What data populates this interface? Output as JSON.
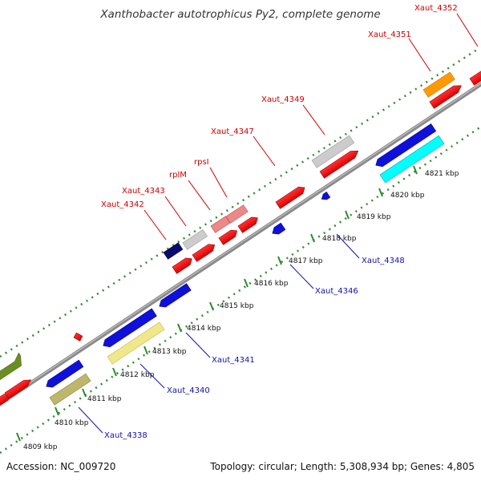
{
  "title": "Xanthobacter autotrophicus Py2, complete genome",
  "footer": {
    "accession": "Accession: NC_009720",
    "stats": "Topology: circular; Length: 5,308,934 bp; Genes: 4,805"
  },
  "kbp_ticks": [
    "4809 kbp",
    "4810 kbp",
    "4811 kbp",
    "4812 kbp",
    "4813 kbp",
    "4814 kbp",
    "4815 kbp",
    "4816 kbp",
    "4817 kbp",
    "4818 kbp",
    "4819 kbp",
    "4820 kbp",
    "4821 kbp"
  ],
  "top_labels": [
    "Xaut_4342",
    "Xaut_4343",
    "rplM",
    "rpsI",
    "Xaut_4347",
    "Xaut_4349",
    "Xaut_4351",
    "Xaut_4352"
  ],
  "bottom_labels": [
    "Xaut_4338",
    "Xaut_4340",
    "Xaut_4341",
    "Xaut_4346",
    "Xaut_4348"
  ],
  "colors": {
    "forward_label": "#cc0000",
    "reverse_label": "#1111aa",
    "backbone": "#8a8a8a",
    "ticks": "#2e8b2e"
  }
}
